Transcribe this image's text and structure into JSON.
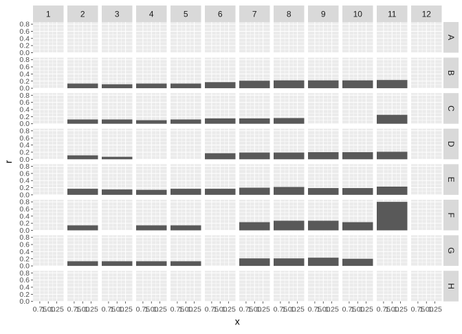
{
  "chart_data": {
    "type": "bar",
    "layout": "facet-grid",
    "xlabel": "x",
    "ylabel": "r",
    "x_ticks": [
      "0.75",
      "1.00",
      "1.25"
    ],
    "x_tick_values": [
      0.75,
      1.0,
      1.25
    ],
    "y_ticks": [
      "0.0",
      "0.2",
      "0.4",
      "0.6",
      "0.8"
    ],
    "y_tick_values": [
      0,
      0.2,
      0.4,
      0.6,
      0.8
    ],
    "xlim": [
      0.55,
      1.45
    ],
    "ylim": [
      0,
      0.86
    ],
    "bar_x": 1,
    "bar_width": 0.9,
    "grid": true,
    "col_strips": [
      "1",
      "2",
      "3",
      "4",
      "5",
      "6",
      "7",
      "8",
      "9",
      "10",
      "11",
      "12"
    ],
    "row_strips": [
      "A",
      "B",
      "C",
      "D",
      "E",
      "F",
      "G",
      "H"
    ],
    "values": [
      [
        null,
        null,
        null,
        null,
        null,
        null,
        null,
        null,
        null,
        null,
        null,
        null
      ],
      [
        null,
        0.13,
        0.11,
        0.13,
        0.13,
        0.17,
        0.21,
        0.22,
        0.22,
        0.22,
        0.23,
        null
      ],
      [
        null,
        0.12,
        0.12,
        0.1,
        0.12,
        0.15,
        0.15,
        0.16,
        null,
        null,
        0.25,
        null
      ],
      [
        null,
        0.11,
        0.07,
        null,
        null,
        0.17,
        0.19,
        0.19,
        0.2,
        0.2,
        0.21,
        null
      ],
      [
        null,
        0.17,
        0.15,
        0.14,
        0.17,
        0.17,
        0.2,
        0.22,
        0.19,
        0.19,
        0.23,
        null
      ],
      [
        null,
        0.14,
        null,
        0.14,
        0.14,
        null,
        0.23,
        0.27,
        0.27,
        0.23,
        0.8,
        null
      ],
      [
        null,
        0.13,
        0.13,
        0.13,
        0.13,
        null,
        0.21,
        0.21,
        0.23,
        0.2,
        null,
        null
      ],
      [
        null,
        null,
        null,
        null,
        null,
        null,
        null,
        null,
        null,
        null,
        null,
        null
      ]
    ],
    "colors": {
      "bar": "#595959",
      "panel_bg": "#EBEBEB",
      "grid_major": "#FFFFFF",
      "strip_bg": "#D9D9D9",
      "strip_text": "#1A1A1A",
      "axis_text": "#4D4D4D",
      "title_text": "#000000"
    }
  }
}
